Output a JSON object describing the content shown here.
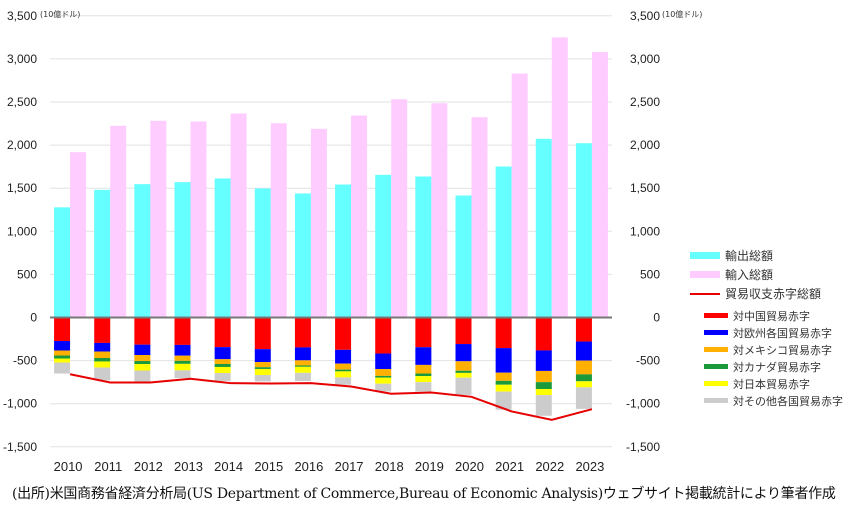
{
  "chart_data": {
    "type": "bar",
    "title": "",
    "unit_label": "(10億ドル)",
    "categories": [
      "2010",
      "2011",
      "2012",
      "2013",
      "2014",
      "2015",
      "2016",
      "2017",
      "2018",
      "2019",
      "2020",
      "2021",
      "2022",
      "2023"
    ],
    "ylim": [
      -1500,
      3500
    ],
    "yticks": [
      3500,
      3000,
      2500,
      2000,
      1500,
      1000,
      500,
      0,
      -500,
      -1000,
      -1500
    ],
    "ytick_labels": [
      "3,500",
      "3,000",
      "2,500",
      "2,000",
      "1,500",
      "1,000",
      "500",
      "0",
      "-500",
      "-1,000",
      "-1,500"
    ],
    "grid": true,
    "dual_axis_labels": true,
    "series": [
      {
        "name": "輸出総額",
        "kind": "bar",
        "color": "#66ffff",
        "values": [
          1278,
          1481,
          1547,
          1570,
          1613,
          1497,
          1439,
          1543,
          1655,
          1636,
          1415,
          1752,
          2073,
          2022
        ]
      },
      {
        "name": "輸入総額",
        "kind": "bar",
        "color": "#ffccff",
        "values": [
          1918,
          2224,
          2282,
          2274,
          2367,
          2254,
          2189,
          2343,
          2532,
          2486,
          2324,
          2830,
          3250,
          3080
        ]
      },
      {
        "name": "貿易収支赤字総額",
        "kind": "line",
        "color": "#e60000",
        "values": [
          -658,
          -754,
          -754,
          -711,
          -762,
          -766,
          -762,
          -800,
          -885,
          -870,
          -920,
          -1090,
          -1187,
          -1064
        ]
      }
    ],
    "stacked_series": [
      {
        "name": "対中国貿易赤字",
        "color": "#ff0000",
        "values": [
          -273,
          -295,
          -315,
          -318,
          -344,
          -367,
          -347,
          -375,
          -418,
          -345,
          -308,
          -355,
          -382,
          -279
        ]
      },
      {
        "name": "対欧州各国貿易赤字",
        "color": "#0000ff",
        "values": [
          -110,
          -100,
          -120,
          -125,
          -140,
          -150,
          -150,
          -160,
          -180,
          -205,
          -200,
          -285,
          -238,
          -221
        ]
      },
      {
        "name": "対メキシコ貿易赤字",
        "color": "#ffb000",
        "values": [
          -58,
          -75,
          -70,
          -60,
          -55,
          -60,
          -60,
          -70,
          -80,
          -100,
          -110,
          -95,
          -130,
          -160
        ]
      },
      {
        "name": "対カナダ貿易赤字",
        "color": "#1a9a3a",
        "values": [
          -35,
          -40,
          -35,
          -35,
          -35,
          -20,
          -15,
          -20,
          -20,
          -30,
          -25,
          -45,
          -80,
          -80
        ]
      },
      {
        "name": "対日本貿易赤字",
        "color": "#ffff00",
        "values": [
          -46,
          -70,
          -75,
          -75,
          -70,
          -70,
          -70,
          -70,
          -70,
          -70,
          -55,
          -80,
          -70,
          -70
        ]
      },
      {
        "name": "対その他各国貿易赤字",
        "color": "#cccccc",
        "values": [
          -128,
          -150,
          -140,
          -90,
          -95,
          -75,
          -95,
          -85,
          -90,
          -110,
          -200,
          -210,
          -240,
          -250
        ]
      }
    ]
  },
  "legend": {
    "items": [
      {
        "label": "輸出総額",
        "type": "bar",
        "color": "#66ffff"
      },
      {
        "label": "輸入総額",
        "type": "bar",
        "color": "#ffccff"
      },
      {
        "label": "貿易収支赤字総額",
        "type": "line",
        "color": "#e60000"
      }
    ],
    "sub_items": [
      {
        "label": "対中国貿易赤字",
        "color": "#ff0000"
      },
      {
        "label": "対欧州各国貿易赤字",
        "color": "#0000ff"
      },
      {
        "label": "対メキシコ貿易赤字",
        "color": "#ffb000"
      },
      {
        "label": "対カナダ貿易赤字",
        "color": "#1a9a3a"
      },
      {
        "label": "対日本貿易赤字",
        "color": "#ffff00"
      },
      {
        "label": "対その他各国貿易赤字",
        "color": "#cccccc"
      }
    ]
  },
  "caption": "(出所)米国商務省経済分析局(US Department of Commerce,Bureau of Economic Analysis)ウェブサイト掲載統計により筆者作成"
}
